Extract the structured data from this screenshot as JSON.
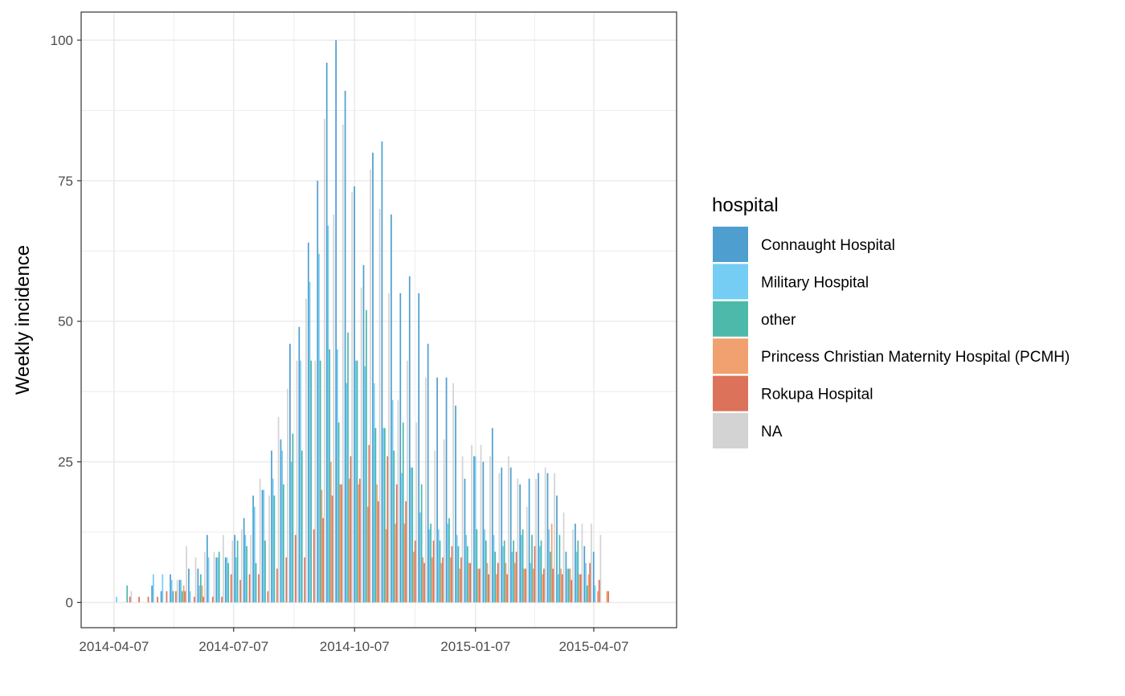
{
  "chart_data": {
    "type": "bar",
    "title": "",
    "xlabel": "",
    "ylabel": "Weekly incidence",
    "ylim": [
      -4.5,
      105
    ],
    "xlim": [
      "2014-03-13",
      "2015-06-09"
    ],
    "y_ticks": [
      0,
      25,
      50,
      75,
      100
    ],
    "y_tick_labels": [
      "0",
      "25",
      "50",
      "75",
      "100"
    ],
    "x_ticks": [
      "2014-04-07",
      "2014-07-07",
      "2014-10-07",
      "2015-01-07",
      "2015-04-07"
    ],
    "x_tick_labels": [
      "2014-04-07",
      "2014-07-07",
      "2014-10-07",
      "2015-01-07",
      "2015-04-07"
    ],
    "grid": true,
    "legend_title": "hospital",
    "legend_position": "right",
    "bar_mode": "dodge",
    "week_starts": [
      "2014-04-07",
      "2014-04-14",
      "2014-04-21",
      "2014-04-28",
      "2014-05-05",
      "2014-05-12",
      "2014-05-19",
      "2014-05-26",
      "2014-06-02",
      "2014-06-09",
      "2014-06-16",
      "2014-06-23",
      "2014-06-30",
      "2014-07-07",
      "2014-07-14",
      "2014-07-21",
      "2014-07-28",
      "2014-08-04",
      "2014-08-11",
      "2014-08-18",
      "2014-08-25",
      "2014-09-01",
      "2014-09-08",
      "2014-09-15",
      "2014-09-22",
      "2014-09-29",
      "2014-10-06",
      "2014-10-13",
      "2014-10-20",
      "2014-10-27",
      "2014-11-03",
      "2014-11-10",
      "2014-11-17",
      "2014-11-24",
      "2014-12-01",
      "2014-12-08",
      "2014-12-15",
      "2014-12-22",
      "2014-12-29",
      "2015-01-05",
      "2015-01-12",
      "2015-01-19",
      "2015-01-26",
      "2015-02-02",
      "2015-02-09",
      "2015-02-16",
      "2015-02-23",
      "2015-03-02",
      "2015-03-09",
      "2015-03-16",
      "2015-03-23",
      "2015-03-30",
      "2015-04-06",
      "2015-04-13",
      "2015-04-20",
      "2015-04-27",
      "2015-05-04",
      "2015-05-11",
      "2015-05-18",
      "2015-05-25"
    ],
    "series": [
      {
        "name": "Connaught Hospital",
        "color": "#4E9FD0",
        "values": [
          0,
          0,
          0,
          0,
          3,
          2,
          5,
          4,
          6,
          6,
          12,
          8,
          8,
          12,
          15,
          19,
          20,
          27,
          29,
          46,
          49,
          64,
          75,
          96,
          100,
          91,
          74,
          60,
          80,
          82,
          69,
          55,
          58,
          55,
          46,
          40,
          40,
          35,
          22,
          26,
          25,
          31,
          24,
          24,
          21,
          22,
          23,
          23,
          19,
          9,
          14,
          10,
          9,
          0,
          0,
          0,
          0,
          0,
          0,
          0
        ]
      },
      {
        "name": "Military Hospital",
        "color": "#75CDF3",
        "values": [
          1,
          0,
          0,
          0,
          5,
          5,
          4,
          4,
          2,
          3,
          8,
          8,
          8,
          8,
          12,
          17,
          20,
          22,
          27,
          25,
          43,
          57,
          62,
          67,
          45,
          39,
          43,
          42,
          39,
          31,
          36,
          23,
          24,
          16,
          13,
          13,
          14,
          12,
          12,
          26,
          13,
          12,
          10,
          9,
          12,
          7,
          10,
          13,
          5,
          6,
          9,
          7,
          3,
          0,
          0,
          0,
          0,
          0,
          0,
          0
        ]
      },
      {
        "name": "other",
        "color": "#4DB9AA",
        "values": [
          0,
          3,
          0,
          0,
          0,
          0,
          2,
          2,
          0,
          5,
          0,
          9,
          7,
          11,
          10,
          7,
          11,
          19,
          21,
          30,
          27,
          43,
          43,
          45,
          32,
          48,
          43,
          52,
          31,
          31,
          27,
          32,
          24,
          21,
          14,
          11,
          15,
          10,
          10,
          13,
          11,
          9,
          11,
          11,
          13,
          12,
          11,
          9,
          12,
          6,
          11,
          3,
          0,
          0,
          0,
          0,
          0,
          0,
          0,
          0
        ]
      },
      {
        "name": "Princess Christian Maternity Hospital (PCMH)",
        "color": "#F1A16F",
        "values": [
          0,
          0,
          0,
          0,
          0,
          0,
          0,
          3,
          0,
          3,
          0,
          0,
          0,
          0,
          0,
          0,
          0,
          0,
          0,
          0,
          0,
          0,
          20,
          25,
          21,
          22,
          21,
          17,
          21,
          13,
          14,
          14,
          9,
          8,
          8,
          7,
          8,
          6,
          7,
          6,
          7,
          5,
          7,
          7,
          6,
          6,
          5,
          14,
          6,
          6,
          5,
          5,
          2,
          2,
          0,
          0,
          0,
          0,
          0,
          0
        ]
      },
      {
        "name": "Rokupa Hospital",
        "color": "#DB7259",
        "values": [
          0,
          1,
          1,
          1,
          1,
          2,
          2,
          2,
          1,
          1,
          1,
          1,
          5,
          4,
          5,
          5,
          2,
          6,
          8,
          12,
          8,
          13,
          15,
          19,
          21,
          26,
          22,
          28,
          18,
          26,
          21,
          18,
          11,
          7,
          11,
          8,
          10,
          8,
          7,
          6,
          5,
          7,
          5,
          9,
          6,
          10,
          6,
          6,
          5,
          4,
          5,
          7,
          4,
          2,
          0,
          0,
          0,
          0,
          0,
          0
        ]
      },
      {
        "name": "NA",
        "color": "#D3D3D3",
        "values": [
          0,
          2,
          0,
          0,
          0,
          0,
          4,
          10,
          8,
          9,
          9,
          12,
          11,
          13,
          12,
          22,
          19,
          33,
          38,
          43,
          54,
          43,
          86,
          69,
          85,
          73,
          56,
          77,
          70,
          55,
          36,
          43,
          32,
          40,
          27,
          29,
          39,
          26,
          28,
          28,
          26,
          23,
          26,
          22,
          17,
          22,
          24,
          23,
          16,
          13,
          14,
          14,
          12,
          0,
          0,
          0,
          0,
          0,
          0,
          0
        ]
      }
    ]
  }
}
